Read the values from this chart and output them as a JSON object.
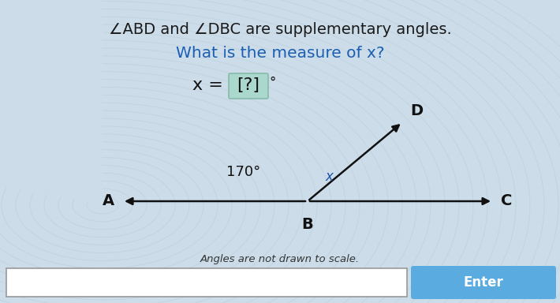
{
  "title_line1": "∠ABD and ∠DBC are supplementary angles.",
  "title_line2": "What is the measure of x?",
  "angle_label": "170°",
  "angle_var": "x",
  "label_A": "A",
  "label_B": "B",
  "label_C": "C",
  "label_D": "D",
  "bg_color": "#ccdce8",
  "title1_color": "#1a1a1a",
  "title2_color": "#1a5fb4",
  "line_color": "#111111",
  "eq_box_color": "#aad8cc",
  "eq_box_edge": "#88bbaa",
  "footnote": "Angles are not drawn to scale.",
  "enter_btn_color": "#5aabe0",
  "enter_btn_text": "Enter",
  "wave_color": "#bbcfdd",
  "angle_label_color": "#111111",
  "x_label_color": "#2255aa"
}
